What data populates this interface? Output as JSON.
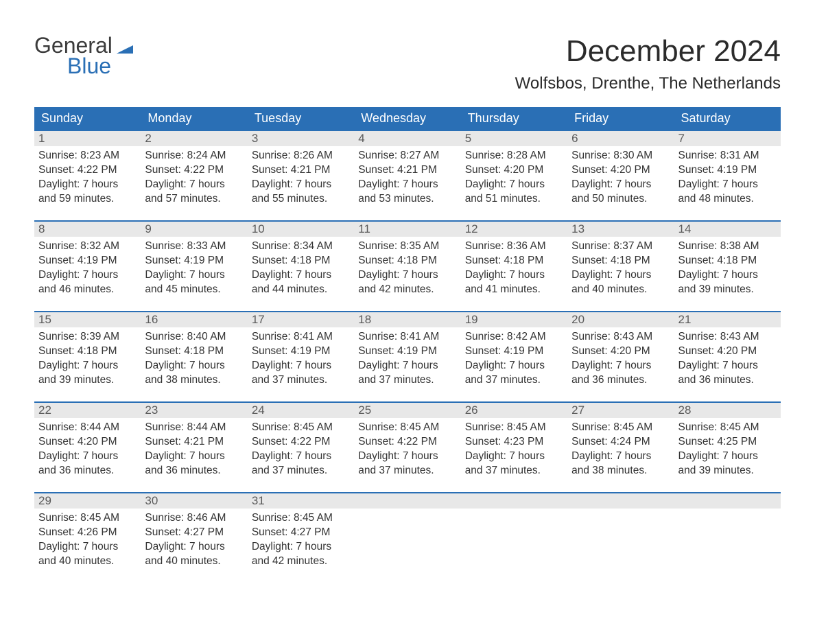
{
  "logo": {
    "word1": "General",
    "word2": "Blue",
    "flag_color": "#2a6fb5"
  },
  "title": "December 2024",
  "location": "Wolfsbos, Drenthe, The Netherlands",
  "colors": {
    "header_bg": "#2a6fb5",
    "header_text": "#ffffff",
    "daynum_bg": "#e8e8e8",
    "daynum_text": "#5a5a5a",
    "body_text": "#333333",
    "row_border": "#2a6fb5",
    "page_bg": "#ffffff"
  },
  "column_headers": [
    "Sunday",
    "Monday",
    "Tuesday",
    "Wednesday",
    "Thursday",
    "Friday",
    "Saturday"
  ],
  "weeks": [
    [
      {
        "n": "1",
        "sunrise": "Sunrise: 8:23 AM",
        "sunset": "Sunset: 4:22 PM",
        "dl1": "Daylight: 7 hours",
        "dl2": "and 59 minutes."
      },
      {
        "n": "2",
        "sunrise": "Sunrise: 8:24 AM",
        "sunset": "Sunset: 4:22 PM",
        "dl1": "Daylight: 7 hours",
        "dl2": "and 57 minutes."
      },
      {
        "n": "3",
        "sunrise": "Sunrise: 8:26 AM",
        "sunset": "Sunset: 4:21 PM",
        "dl1": "Daylight: 7 hours",
        "dl2": "and 55 minutes."
      },
      {
        "n": "4",
        "sunrise": "Sunrise: 8:27 AM",
        "sunset": "Sunset: 4:21 PM",
        "dl1": "Daylight: 7 hours",
        "dl2": "and 53 minutes."
      },
      {
        "n": "5",
        "sunrise": "Sunrise: 8:28 AM",
        "sunset": "Sunset: 4:20 PM",
        "dl1": "Daylight: 7 hours",
        "dl2": "and 51 minutes."
      },
      {
        "n": "6",
        "sunrise": "Sunrise: 8:30 AM",
        "sunset": "Sunset: 4:20 PM",
        "dl1": "Daylight: 7 hours",
        "dl2": "and 50 minutes."
      },
      {
        "n": "7",
        "sunrise": "Sunrise: 8:31 AM",
        "sunset": "Sunset: 4:19 PM",
        "dl1": "Daylight: 7 hours",
        "dl2": "and 48 minutes."
      }
    ],
    [
      {
        "n": "8",
        "sunrise": "Sunrise: 8:32 AM",
        "sunset": "Sunset: 4:19 PM",
        "dl1": "Daylight: 7 hours",
        "dl2": "and 46 minutes."
      },
      {
        "n": "9",
        "sunrise": "Sunrise: 8:33 AM",
        "sunset": "Sunset: 4:19 PM",
        "dl1": "Daylight: 7 hours",
        "dl2": "and 45 minutes."
      },
      {
        "n": "10",
        "sunrise": "Sunrise: 8:34 AM",
        "sunset": "Sunset: 4:18 PM",
        "dl1": "Daylight: 7 hours",
        "dl2": "and 44 minutes."
      },
      {
        "n": "11",
        "sunrise": "Sunrise: 8:35 AM",
        "sunset": "Sunset: 4:18 PM",
        "dl1": "Daylight: 7 hours",
        "dl2": "and 42 minutes."
      },
      {
        "n": "12",
        "sunrise": "Sunrise: 8:36 AM",
        "sunset": "Sunset: 4:18 PM",
        "dl1": "Daylight: 7 hours",
        "dl2": "and 41 minutes."
      },
      {
        "n": "13",
        "sunrise": "Sunrise: 8:37 AM",
        "sunset": "Sunset: 4:18 PM",
        "dl1": "Daylight: 7 hours",
        "dl2": "and 40 minutes."
      },
      {
        "n": "14",
        "sunrise": "Sunrise: 8:38 AM",
        "sunset": "Sunset: 4:18 PM",
        "dl1": "Daylight: 7 hours",
        "dl2": "and 39 minutes."
      }
    ],
    [
      {
        "n": "15",
        "sunrise": "Sunrise: 8:39 AM",
        "sunset": "Sunset: 4:18 PM",
        "dl1": "Daylight: 7 hours",
        "dl2": "and 39 minutes."
      },
      {
        "n": "16",
        "sunrise": "Sunrise: 8:40 AM",
        "sunset": "Sunset: 4:18 PM",
        "dl1": "Daylight: 7 hours",
        "dl2": "and 38 minutes."
      },
      {
        "n": "17",
        "sunrise": "Sunrise: 8:41 AM",
        "sunset": "Sunset: 4:19 PM",
        "dl1": "Daylight: 7 hours",
        "dl2": "and 37 minutes."
      },
      {
        "n": "18",
        "sunrise": "Sunrise: 8:41 AM",
        "sunset": "Sunset: 4:19 PM",
        "dl1": "Daylight: 7 hours",
        "dl2": "and 37 minutes."
      },
      {
        "n": "19",
        "sunrise": "Sunrise: 8:42 AM",
        "sunset": "Sunset: 4:19 PM",
        "dl1": "Daylight: 7 hours",
        "dl2": "and 37 minutes."
      },
      {
        "n": "20",
        "sunrise": "Sunrise: 8:43 AM",
        "sunset": "Sunset: 4:20 PM",
        "dl1": "Daylight: 7 hours",
        "dl2": "and 36 minutes."
      },
      {
        "n": "21",
        "sunrise": "Sunrise: 8:43 AM",
        "sunset": "Sunset: 4:20 PM",
        "dl1": "Daylight: 7 hours",
        "dl2": "and 36 minutes."
      }
    ],
    [
      {
        "n": "22",
        "sunrise": "Sunrise: 8:44 AM",
        "sunset": "Sunset: 4:20 PM",
        "dl1": "Daylight: 7 hours",
        "dl2": "and 36 minutes."
      },
      {
        "n": "23",
        "sunrise": "Sunrise: 8:44 AM",
        "sunset": "Sunset: 4:21 PM",
        "dl1": "Daylight: 7 hours",
        "dl2": "and 36 minutes."
      },
      {
        "n": "24",
        "sunrise": "Sunrise: 8:45 AM",
        "sunset": "Sunset: 4:22 PM",
        "dl1": "Daylight: 7 hours",
        "dl2": "and 37 minutes."
      },
      {
        "n": "25",
        "sunrise": "Sunrise: 8:45 AM",
        "sunset": "Sunset: 4:22 PM",
        "dl1": "Daylight: 7 hours",
        "dl2": "and 37 minutes."
      },
      {
        "n": "26",
        "sunrise": "Sunrise: 8:45 AM",
        "sunset": "Sunset: 4:23 PM",
        "dl1": "Daylight: 7 hours",
        "dl2": "and 37 minutes."
      },
      {
        "n": "27",
        "sunrise": "Sunrise: 8:45 AM",
        "sunset": "Sunset: 4:24 PM",
        "dl1": "Daylight: 7 hours",
        "dl2": "and 38 minutes."
      },
      {
        "n": "28",
        "sunrise": "Sunrise: 8:45 AM",
        "sunset": "Sunset: 4:25 PM",
        "dl1": "Daylight: 7 hours",
        "dl2": "and 39 minutes."
      }
    ],
    [
      {
        "n": "29",
        "sunrise": "Sunrise: 8:45 AM",
        "sunset": "Sunset: 4:26 PM",
        "dl1": "Daylight: 7 hours",
        "dl2": "and 40 minutes."
      },
      {
        "n": "30",
        "sunrise": "Sunrise: 8:46 AM",
        "sunset": "Sunset: 4:27 PM",
        "dl1": "Daylight: 7 hours",
        "dl2": "and 40 minutes."
      },
      {
        "n": "31",
        "sunrise": "Sunrise: 8:45 AM",
        "sunset": "Sunset: 4:27 PM",
        "dl1": "Daylight: 7 hours",
        "dl2": "and 42 minutes."
      },
      null,
      null,
      null,
      null
    ]
  ]
}
